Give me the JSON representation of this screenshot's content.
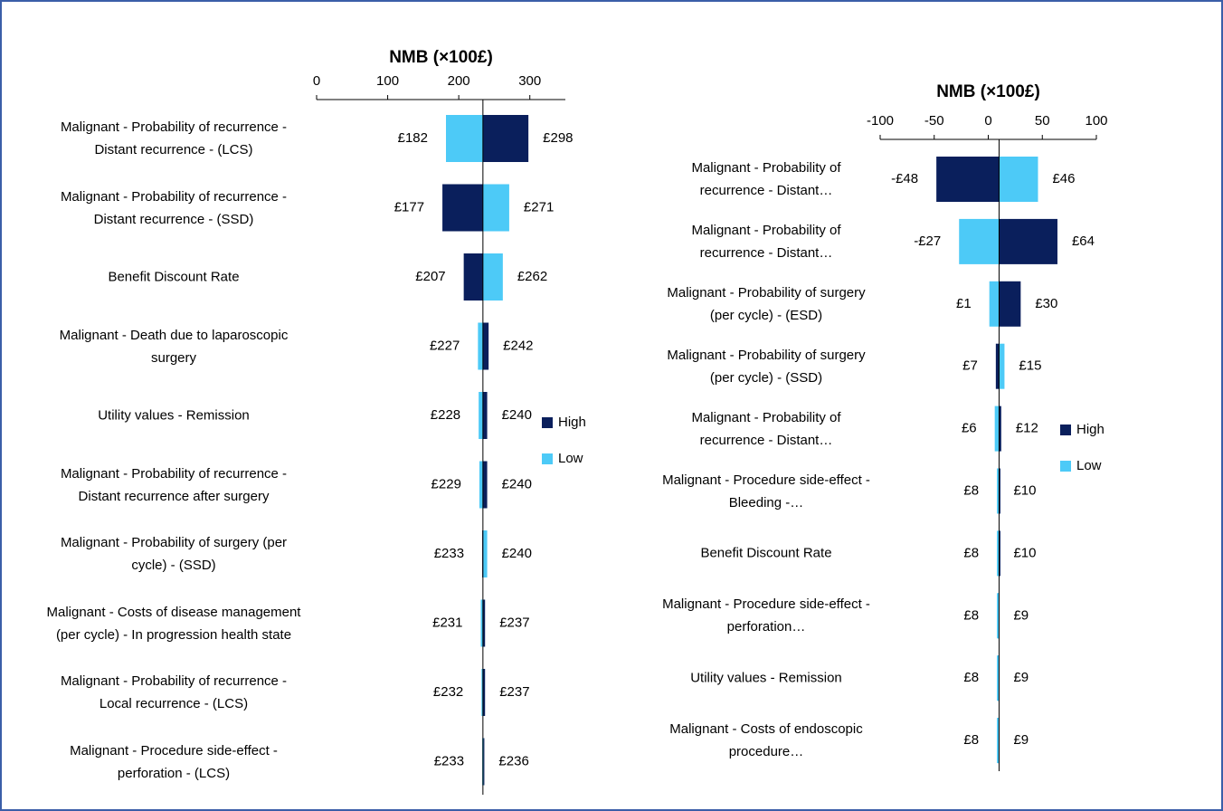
{
  "chart_data": [
    {
      "type": "tornado",
      "title": "NMB (×100£)",
      "xlim": [
        0,
        350
      ],
      "xticks": [
        0,
        100,
        200,
        300
      ],
      "base": 234,
      "categories": [
        "Malignant - Probability of recurrence - Distant recurrence - (LCS)",
        "Malignant - Probability of recurrence - Distant recurrence - (SSD)",
        "Benefit Discount Rate",
        "Malignant - Death due to laparoscopic surgery",
        "Utility values -  Remission",
        "Malignant - Probability of recurrence  - Distant recurrence after surgery",
        "Malignant - Probability of surgery (per cycle) -  (SSD)",
        "Malignant - Costs of disease management (per cycle) - In progression health state",
        "Malignant - Probability of recurrence - Local recurrence - (LCS)",
        "Malignant - Procedure side-effect - perforation -  (LCS)"
      ],
      "series": [
        {
          "name": "High",
          "color": "#0a1f5c",
          "values": [
            298,
            177,
            207,
            242,
            240,
            240,
            233,
            237,
            237,
            236
          ],
          "value_labels": [
            "£298",
            "£177",
            "£207",
            "£242",
            "£240",
            "£240",
            "£233",
            "£237",
            "£237",
            "£236"
          ]
        },
        {
          "name": "Low",
          "color": "#4dcaf7",
          "values": [
            182,
            271,
            262,
            227,
            228,
            229,
            240,
            231,
            232,
            233
          ],
          "value_labels": [
            "£182",
            "£271",
            "£262",
            "£227",
            "£228",
            "£229",
            "£240",
            "£231",
            "£232",
            "£233"
          ]
        }
      ]
    },
    {
      "type": "tornado",
      "title": "NMB (×100£)",
      "xlim": [
        -100,
        100
      ],
      "xticks": [
        -100,
        -50,
        0,
        50,
        100
      ],
      "base": 10,
      "categories": [
        "Malignant - Probability of recurrence - Distant…",
        "Malignant - Probability of recurrence - Distant…",
        "Malignant - Probability of surgery (per cycle) -  (ESD)",
        "Malignant - Probability of surgery (per cycle) -  (SSD)",
        "Malignant - Probability of recurrence  - Distant…",
        "Malignant - Procedure side-effect - Bleeding -…",
        "Benefit Discount Rate",
        "Malignant - Procedure side-effect - perforation…",
        "Utility values -  Remission",
        "Malignant - Costs of endoscopic procedure…"
      ],
      "series": [
        {
          "name": "High",
          "color": "#0a1f5c",
          "values": [
            -48,
            64,
            30,
            7,
            12,
            10,
            10,
            9,
            9,
            9
          ],
          "value_labels": [
            "-£48",
            "£64",
            "£30",
            "£7",
            "£12",
            "£10",
            "£10",
            "£9",
            "£9",
            "£9"
          ]
        },
        {
          "name": "Low",
          "color": "#4dcaf7",
          "values": [
            46,
            -27,
            1,
            15,
            6,
            8,
            8,
            8,
            8,
            8
          ],
          "value_labels": [
            "£46",
            "-£27",
            "£1",
            "£15",
            "£6",
            "£8",
            "£8",
            "£8",
            "£8",
            "£8"
          ]
        }
      ]
    }
  ]
}
